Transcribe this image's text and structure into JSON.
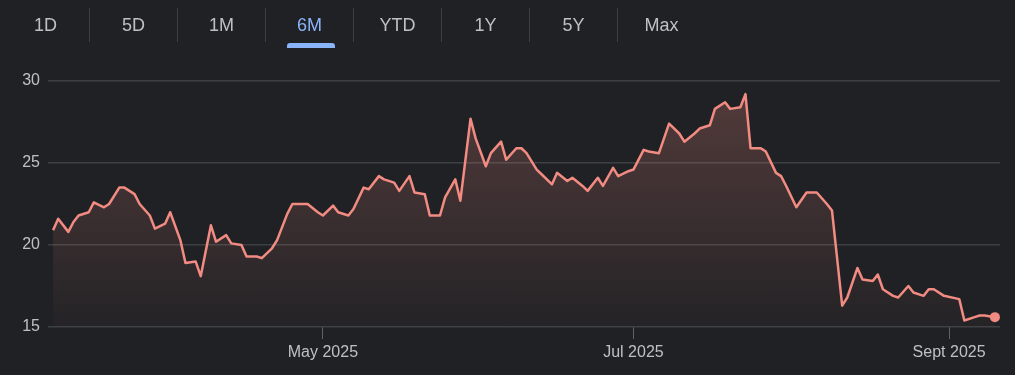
{
  "chart_data": {
    "type": "area",
    "annotations": [
      "1D",
      "5D",
      "1M",
      "6M",
      "YTD",
      "1Y",
      "5Y",
      "Max"
    ],
    "x": [
      "2025-03-09",
      "2025-03-10",
      "2025-03-12",
      "2025-03-13",
      "2025-03-14",
      "2025-03-16",
      "2025-03-17",
      "2025-03-19",
      "2025-03-20",
      "2025-03-22",
      "2025-03-23",
      "2025-03-25",
      "2025-03-26",
      "2025-03-28",
      "2025-03-29",
      "2025-03-31",
      "2025-04-01",
      "2025-04-03",
      "2025-04-04",
      "2025-04-06",
      "2025-04-07",
      "2025-04-09",
      "2025-04-10",
      "2025-04-12",
      "2025-04-13",
      "2025-04-15",
      "2025-04-16",
      "2025-04-18",
      "2025-04-19",
      "2025-04-21",
      "2025-04-22",
      "2025-04-24",
      "2025-04-25",
      "2025-04-28",
      "2025-04-30",
      "2025-05-01",
      "2025-05-03",
      "2025-05-04",
      "2025-05-06",
      "2025-05-07",
      "2025-05-09",
      "2025-05-10",
      "2025-05-12",
      "2025-05-13",
      "2025-05-15",
      "2025-05-16",
      "2025-05-18",
      "2025-05-19",
      "2025-05-21",
      "2025-05-22",
      "2025-05-24",
      "2025-05-25",
      "2025-05-27",
      "2025-05-28",
      "2025-05-30",
      "2025-05-31",
      "2025-06-02",
      "2025-06-03",
      "2025-06-05",
      "2025-06-06",
      "2025-06-08",
      "2025-06-09",
      "2025-06-10",
      "2025-06-12",
      "2025-06-13",
      "2025-06-15",
      "2025-06-16",
      "2025-06-18",
      "2025-06-19",
      "2025-06-21",
      "2025-06-22",
      "2025-06-24",
      "2025-06-25",
      "2025-06-27",
      "2025-06-28",
      "2025-06-30",
      "2025-07-01",
      "2025-07-03",
      "2025-07-04",
      "2025-07-06",
      "2025-07-07",
      "2025-07-08",
      "2025-07-10",
      "2025-07-11",
      "2025-07-13",
      "2025-07-14",
      "2025-07-16",
      "2025-07-17",
      "2025-07-19",
      "2025-07-20",
      "2025-07-22",
      "2025-07-23",
      "2025-07-24",
      "2025-07-26",
      "2025-07-27",
      "2025-07-29",
      "2025-07-30",
      "2025-07-31",
      "2025-08-02",
      "2025-08-04",
      "2025-08-05",
      "2025-08-06",
      "2025-08-08",
      "2025-08-09",
      "2025-08-11",
      "2025-08-12",
      "2025-08-14",
      "2025-08-15",
      "2025-08-17",
      "2025-08-18",
      "2025-08-19",
      "2025-08-21",
      "2025-08-22",
      "2025-08-24",
      "2025-08-25",
      "2025-08-27",
      "2025-08-28",
      "2025-08-29",
      "2025-08-31",
      "2025-09-03",
      "2025-09-04",
      "2025-09-06",
      "2025-09-07",
      "2025-09-08",
      "2025-09-10"
    ],
    "series": [
      {
        "color": "#f28b82",
        "values": [
          20.9,
          21.6,
          20.8,
          21.4,
          21.8,
          22.0,
          22.6,
          22.3,
          22.5,
          23.5,
          23.5,
          23.1,
          22.5,
          21.8,
          21.0,
          21.3,
          22.0,
          20.3,
          18.9,
          19.0,
          18.1,
          21.2,
          20.2,
          20.6,
          20.1,
          20.0,
          19.3,
          19.3,
          19.2,
          19.8,
          20.3,
          21.9,
          22.5,
          22.5,
          22.0,
          21.8,
          22.4,
          22.0,
          21.8,
          22.2,
          23.5,
          23.4,
          24.2,
          24.0,
          23.8,
          23.3,
          24.2,
          23.2,
          23.1,
          21.8,
          21.8,
          22.9,
          24.0,
          22.7,
          27.7,
          26.5,
          24.8,
          25.6,
          26.3,
          25.2,
          25.9,
          25.9,
          25.6,
          24.6,
          24.3,
          23.7,
          24.4,
          23.9,
          24.1,
          23.6,
          23.3,
          24.1,
          23.6,
          24.7,
          24.2,
          24.5,
          24.6,
          25.8,
          25.7,
          25.6,
          26.5,
          27.4,
          26.8,
          26.3,
          26.8,
          27.1,
          27.3,
          28.3,
          28.7,
          28.3,
          28.4,
          29.2,
          25.9,
          25.9,
          25.7,
          24.4,
          24.2,
          23.6,
          22.3,
          23.2,
          23.2,
          23.2,
          22.5,
          22.1,
          16.3,
          16.8,
          18.6,
          17.9,
          17.8,
          18.2,
          17.3,
          16.9,
          16.8,
          17.5,
          17.1,
          16.9,
          17.3,
          17.3,
          16.9,
          16.7,
          15.4,
          15.6,
          15.7,
          15.7,
          15.6
        ]
      }
    ],
    "xlim": [
      "2025-03-08",
      "2025-09-11"
    ],
    "xticks": [
      {
        "value": "2025-05-01",
        "label": "May 2025"
      },
      {
        "value": "2025-07-01",
        "label": "Jul 2025"
      },
      {
        "value": "2025-09-01",
        "label": "Sept 2025"
      }
    ],
    "ylim": [
      15,
      30
    ],
    "yticks": [
      15,
      20,
      25,
      30
    ],
    "grid": "y",
    "legend": false,
    "marker": "none"
  }
}
